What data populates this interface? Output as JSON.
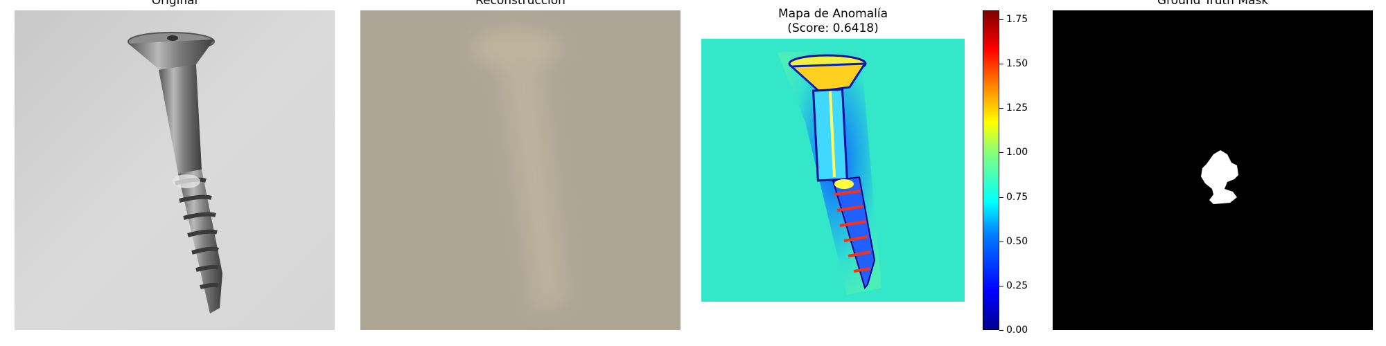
{
  "panels": {
    "original": {
      "title": "Original"
    },
    "reconstruction": {
      "title": "Reconstrucción"
    },
    "anomaly_map": {
      "title_line1": "Mapa de Anomalía",
      "title_line2": "(Score: 0.6418)"
    },
    "ground_truth": {
      "title": "Ground Truth Mask"
    }
  },
  "colorbar": {
    "colormap": "jet",
    "range": [
      0.0,
      1.8
    ],
    "ticks": [
      "0.00",
      "0.25",
      "0.50",
      "0.75",
      "1.00",
      "1.25",
      "1.50",
      "1.75"
    ]
  },
  "colors": {
    "original_background": "#d4d4d4",
    "reconstruction_background": "#ada596",
    "anomaly_background": "#33e7c8",
    "mask_background": "#000000",
    "mask_region": "#ffffff"
  }
}
